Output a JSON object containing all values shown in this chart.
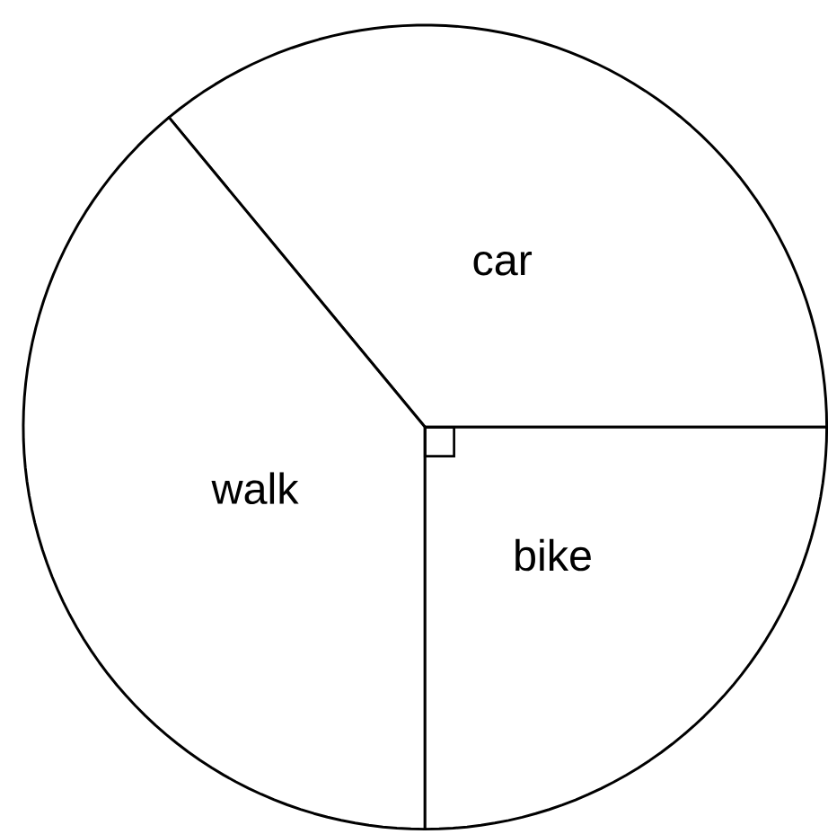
{
  "chart_data": {
    "type": "pie",
    "categories": [
      "car",
      "walk",
      "bike"
    ],
    "values": [
      36,
      39,
      25
    ],
    "colors": [
      "#ffffff",
      "#ffffff",
      "#ffffff"
    ]
  }
}
